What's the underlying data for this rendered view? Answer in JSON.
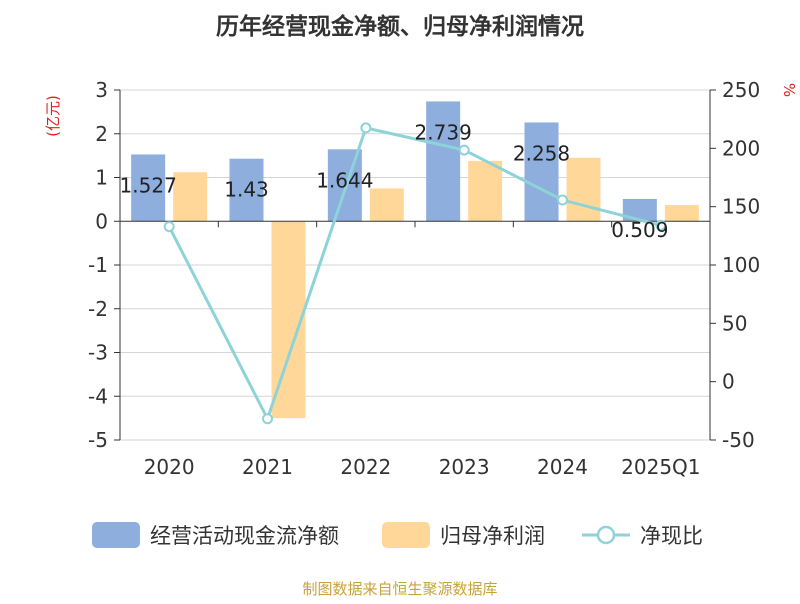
{
  "chart_data": {
    "type": "bar",
    "title": "历年经营现金净额、归母净利润情况",
    "categories": [
      "2020",
      "2021",
      "2022",
      "2023",
      "2024",
      "2025Q1"
    ],
    "ylabel_left": "(亿元)",
    "ylabel_right": "%",
    "ylim_left": [
      -5,
      3
    ],
    "ylim_right": [
      -50,
      250
    ],
    "yticks_left": [
      3,
      2,
      1,
      0,
      -1,
      -2,
      -3,
      -4,
      -5
    ],
    "yticks_right": [
      250,
      200,
      150,
      100,
      50,
      0,
      -50
    ],
    "grid": true,
    "legend_position": "bottom",
    "series": [
      {
        "name": "经营活动现金流净额",
        "kind": "bar",
        "axis": "left",
        "color": "#8eaedd",
        "values": [
          1.527,
          1.43,
          1.644,
          2.739,
          2.258,
          0.509
        ],
        "labels": [
          "1.527",
          "1.43",
          "1.644",
          "2.739",
          "2.258",
          "0.509"
        ]
      },
      {
        "name": "归母净利润",
        "kind": "bar",
        "axis": "left",
        "color": "#ffd899",
        "values": [
          1.12,
          -4.5,
          0.75,
          1.38,
          1.45,
          0.37
        ]
      },
      {
        "name": "净现比",
        "kind": "line",
        "axis": "right",
        "color": "#8dd3d8",
        "values": [
          132.9,
          -31.8,
          217.5,
          198.5,
          155.7,
          134.0
        ]
      }
    ],
    "source": "制图数据来自恒生聚源数据库"
  }
}
